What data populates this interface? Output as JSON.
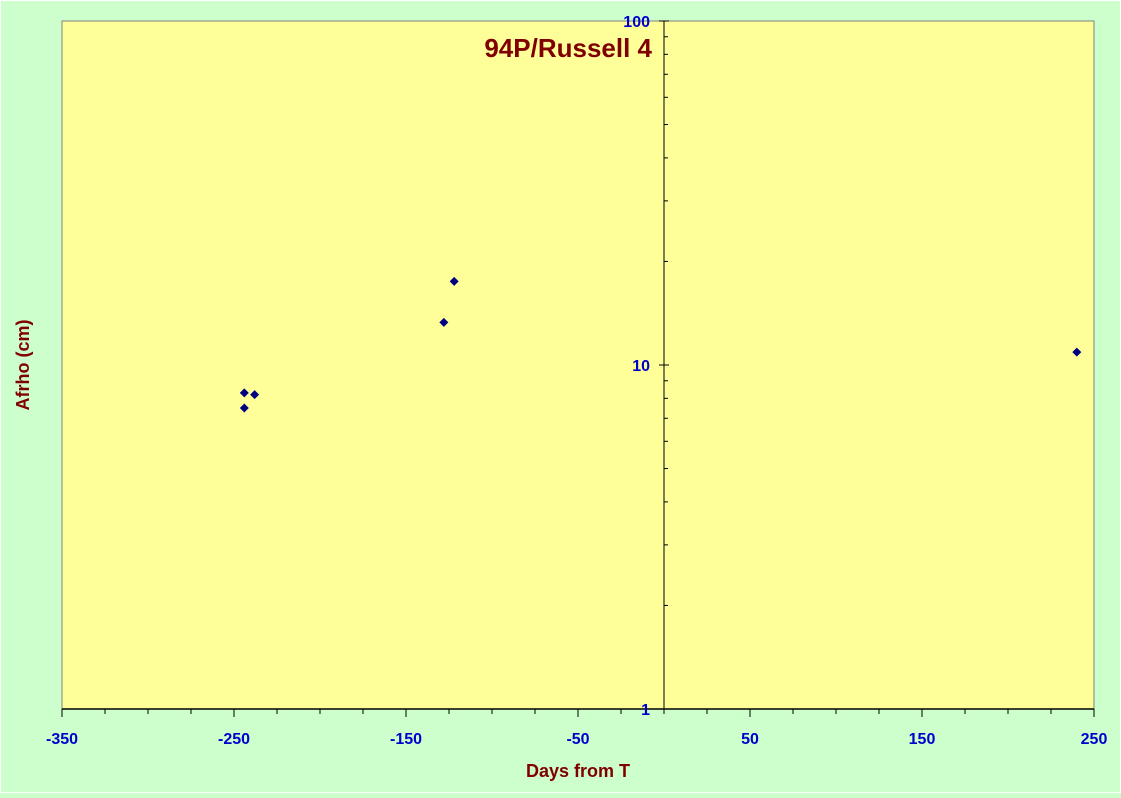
{
  "chart_data": {
    "type": "scatter",
    "title": "94P/Russell 4",
    "xlabel": "Days from T",
    "ylabel": "Afrho (cm)",
    "xlim": [
      -350,
      250
    ],
    "ylim": [
      1,
      100
    ],
    "yscale": "log",
    "x_ticks": [
      -350,
      -250,
      -150,
      -50,
      50,
      150,
      250
    ],
    "x_tick_labels": [
      "-350",
      "-250",
      "-150",
      "-50",
      "50",
      "150",
      "250"
    ],
    "y_ticks": [
      1,
      10,
      100
    ],
    "y_tick_labels": [
      "1",
      "10",
      "100"
    ],
    "grid": false,
    "series": [
      {
        "points": [
          {
            "x": -244,
            "y": 8.3
          },
          {
            "x": -238,
            "y": 8.2
          },
          {
            "x": -244,
            "y": 7.5
          },
          {
            "x": -128,
            "y": 13.3
          },
          {
            "x": -122,
            "y": 17.5
          },
          {
            "x": 240,
            "y": 10.9
          }
        ]
      }
    ],
    "colors": {
      "plot_background": "#ffff99",
      "page_background": "#ccffcc",
      "marker": "#000080",
      "tick_labels": "#0000cc",
      "titles": "#800000"
    }
  }
}
